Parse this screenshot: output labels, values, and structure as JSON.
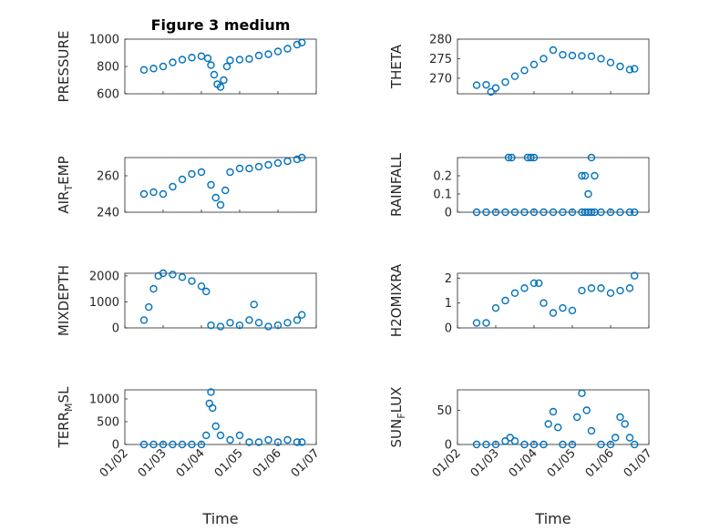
{
  "chart_data": [
    {
      "type": "scatter",
      "title": "Figure 3 medium",
      "ylabel": "PRESSURE",
      "xlabel": "",
      "xlim": [
        "01/02",
        "01/07"
      ],
      "ylim": [
        600,
        1000
      ],
      "yticks": [
        600,
        800,
        1000
      ],
      "x": [
        "01/02 12:00",
        "01/02 18:00",
        "01/03 00:00",
        "01/03 06:00",
        "01/03 12:00",
        "01/03 18:00",
        "01/04 00:00",
        "01/04 04:00",
        "01/04 06:00",
        "01/04 08:00",
        "01/04 10:00",
        "01/04 12:00",
        "01/04 14:00",
        "01/04 16:00",
        "01/04 18:00",
        "01/05 00:00",
        "01/05 06:00",
        "01/05 12:00",
        "01/05 18:00",
        "01/06 00:00",
        "01/06 06:00",
        "01/06 12:00",
        "01/06 15:00"
      ],
      "y": [
        775,
        785,
        800,
        830,
        850,
        865,
        875,
        860,
        810,
        740,
        670,
        650,
        700,
        800,
        845,
        850,
        855,
        880,
        890,
        910,
        930,
        960,
        975
      ]
    },
    {
      "type": "scatter",
      "title": "",
      "ylabel": "THETA",
      "xlabel": "",
      "xlim": [
        "01/02",
        "01/07"
      ],
      "ylim": [
        266,
        280
      ],
      "yticks": [
        270,
        275,
        280
      ],
      "x": [
        "01/02 12:00",
        "01/02 18:00",
        "01/02 21:00",
        "01/03 00:00",
        "01/03 06:00",
        "01/03 12:00",
        "01/03 18:00",
        "01/04 00:00",
        "01/04 06:00",
        "01/04 12:00",
        "01/04 18:00",
        "01/05 00:00",
        "01/05 06:00",
        "01/05 12:00",
        "01/05 18:00",
        "01/06 00:00",
        "01/06 06:00",
        "01/06 12:00",
        "01/06 15:00"
      ],
      "y": [
        268.2,
        268.3,
        266.5,
        267.5,
        269,
        270.5,
        272,
        273.5,
        275,
        277.2,
        276,
        275.8,
        275.7,
        275.6,
        275,
        274,
        273,
        272.2,
        272.4
      ]
    },
    {
      "type": "scatter",
      "title": "",
      "ylabel": "AIR_TEMP",
      "xlabel": "",
      "xlim": [
        "01/02",
        "01/07"
      ],
      "ylim": [
        240,
        270
      ],
      "yticks": [
        240,
        260
      ],
      "x": [
        "01/02 12:00",
        "01/02 18:00",
        "01/03 00:00",
        "01/03 06:00",
        "01/03 12:00",
        "01/03 18:00",
        "01/04 00:00",
        "01/04 06:00",
        "01/04 09:00",
        "01/04 12:00",
        "01/04 15:00",
        "01/04 18:00",
        "01/05 00:00",
        "01/05 06:00",
        "01/05 12:00",
        "01/05 18:00",
        "01/06 00:00",
        "01/06 06:00",
        "01/06 12:00",
        "01/06 15:00"
      ],
      "y": [
        250,
        251,
        250,
        254,
        258,
        261,
        262,
        255,
        248,
        244,
        252,
        262,
        264,
        264,
        265,
        266,
        267,
        268,
        269,
        270
      ]
    },
    {
      "type": "scatter",
      "title": "",
      "ylabel": "RAINFALL",
      "xlabel": "",
      "xlim": [
        "01/02",
        "01/07"
      ],
      "ylim": [
        0,
        0.3
      ],
      "yticks": [
        0,
        0.1,
        0.2
      ],
      "x": [
        "01/02 12:00",
        "01/02 18:00",
        "01/03 00:00",
        "01/03 06:00",
        "01/03 12:00",
        "01/03 18:00",
        "01/04 00:00",
        "01/04 06:00",
        "01/04 12:00",
        "01/04 18:00",
        "01/05 00:00",
        "01/05 06:00",
        "01/05 08:00",
        "01/05 10:00",
        "01/05 12:00",
        "01/05 14:00",
        "01/05 18:00",
        "01/06 00:00",
        "01/06 06:00",
        "01/06 12:00",
        "01/06 15:00",
        "01/03 08:00",
        "01/03 10:00",
        "01/03 20:00",
        "01/03 22:00",
        "01/04 00:00",
        "01/05 06:00",
        "01/05 08:00",
        "01/05 10:00",
        "01/05 12:00",
        "01/05 14:00"
      ],
      "y": [
        0,
        0,
        0,
        0,
        0,
        0,
        0,
        0,
        0,
        0,
        0,
        0,
        0,
        0,
        0,
        0,
        0,
        0,
        0,
        0,
        0,
        0.3,
        0.3,
        0.3,
        0.3,
        0.3,
        0.2,
        0.2,
        0.1,
        0.3,
        0.2
      ]
    },
    {
      "type": "scatter",
      "title": "",
      "ylabel": "MIXDEPTH",
      "xlabel": "",
      "xlim": [
        "01/02",
        "01/07"
      ],
      "ylim": [
        0,
        2100
      ],
      "yticks": [
        0,
        1000,
        2000
      ],
      "x": [
        "01/02 12:00",
        "01/02 15:00",
        "01/02 18:00",
        "01/02 21:00",
        "01/03 00:00",
        "01/03 06:00",
        "01/03 12:00",
        "01/03 18:00",
        "01/04 00:00",
        "01/04 03:00",
        "01/04 06:00",
        "01/04 12:00",
        "01/04 18:00",
        "01/05 00:00",
        "01/05 06:00",
        "01/05 09:00",
        "01/05 12:00",
        "01/05 18:00",
        "01/06 00:00",
        "01/06 06:00",
        "01/06 12:00",
        "01/06 15:00"
      ],
      "y": [
        300,
        800,
        1500,
        2000,
        2100,
        2050,
        1950,
        1800,
        1600,
        1400,
        100,
        50,
        200,
        100,
        300,
        900,
        200,
        50,
        100,
        200,
        300,
        500
      ]
    },
    {
      "type": "scatter",
      "title": "",
      "ylabel": "H2OMIXRA",
      "xlabel": "",
      "xlim": [
        "01/02",
        "01/07"
      ],
      "ylim": [
        0,
        2.2
      ],
      "yticks": [
        0,
        1,
        2
      ],
      "x": [
        "01/02 12:00",
        "01/02 18:00",
        "01/03 00:00",
        "01/03 06:00",
        "01/03 12:00",
        "01/03 18:00",
        "01/04 00:00",
        "01/04 03:00",
        "01/04 06:00",
        "01/04 12:00",
        "01/04 18:00",
        "01/05 00:00",
        "01/05 06:00",
        "01/05 12:00",
        "01/05 18:00",
        "01/06 00:00",
        "01/06 06:00",
        "01/06 12:00",
        "01/06 15:00"
      ],
      "y": [
        0.2,
        0.2,
        0.8,
        1.1,
        1.4,
        1.6,
        1.8,
        1.8,
        1.0,
        0.6,
        0.8,
        0.7,
        1.5,
        1.6,
        1.6,
        1.4,
        1.5,
        1.6,
        2.1
      ]
    },
    {
      "type": "scatter",
      "title": "",
      "ylabel": "TERR_MSL",
      "xlabel": "Time",
      "xlim": [
        "01/02",
        "01/07"
      ],
      "ylim": [
        0,
        1200
      ],
      "yticks": [
        0,
        500,
        1000
      ],
      "xticks": [
        "01/02",
        "01/03",
        "01/04",
        "01/05",
        "01/06",
        "01/07"
      ],
      "x": [
        "01/02 12:00",
        "01/02 18:00",
        "01/03 00:00",
        "01/03 06:00",
        "01/03 12:00",
        "01/03 18:00",
        "01/04 00:00",
        "01/04 03:00",
        "01/04 05:00",
        "01/04 06:00",
        "01/04 07:00",
        "01/04 09:00",
        "01/04 12:00",
        "01/04 18:00",
        "01/05 00:00",
        "01/05 06:00",
        "01/05 12:00",
        "01/05 18:00",
        "01/06 00:00",
        "01/06 06:00",
        "01/06 12:00",
        "01/06 15:00"
      ],
      "y": [
        0,
        0,
        0,
        0,
        0,
        0,
        0,
        200,
        900,
        1150,
        800,
        400,
        200,
        100,
        200,
        50,
        50,
        100,
        50,
        100,
        50,
        50
      ]
    },
    {
      "type": "scatter",
      "title": "",
      "ylabel": "SUN_FLUX",
      "xlabel": "Time",
      "xlim": [
        "01/02",
        "01/07"
      ],
      "ylim": [
        0,
        80
      ],
      "yticks": [
        0,
        50
      ],
      "xticks": [
        "01/02",
        "01/03",
        "01/04",
        "01/05",
        "01/06",
        "01/07"
      ],
      "x": [
        "01/02 12:00",
        "01/02 18:00",
        "01/03 00:00",
        "01/03 06:00",
        "01/03 09:00",
        "01/03 12:00",
        "01/03 18:00",
        "01/04 00:00",
        "01/04 06:00",
        "01/04 09:00",
        "01/04 12:00",
        "01/04 15:00",
        "01/04 18:00",
        "01/05 00:00",
        "01/05 03:00",
        "01/05 06:00",
        "01/05 09:00",
        "01/05 12:00",
        "01/05 18:00",
        "01/06 00:00",
        "01/06 03:00",
        "01/06 06:00",
        "01/06 09:00",
        "01/06 12:00",
        "01/06 15:00"
      ],
      "y": [
        0,
        0,
        0,
        5,
        10,
        5,
        0,
        0,
        0,
        30,
        48,
        25,
        0,
        0,
        40,
        75,
        50,
        20,
        0,
        0,
        10,
        40,
        30,
        10,
        0
      ]
    }
  ]
}
